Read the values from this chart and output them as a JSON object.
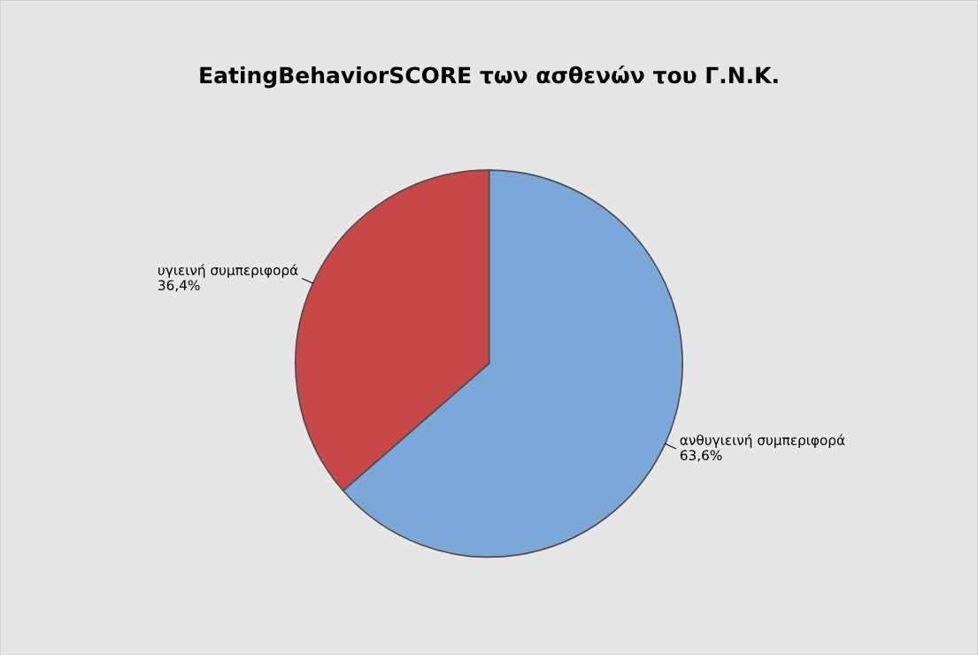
{
  "chart_data": {
    "type": "pie",
    "title": "EatingBehaviorSCORE των ασθενών του Γ.Ν.Κ.",
    "categories": [
      "ανθυγιεινή συμπεριφορά",
      "υγιεινή συμπεριφορά"
    ],
    "values": [
      63.6,
      36.4
    ],
    "value_labels": [
      "63,6%",
      "36,4%"
    ],
    "colors": [
      "#7ba7d9",
      "#c84848"
    ],
    "legend": false
  }
}
